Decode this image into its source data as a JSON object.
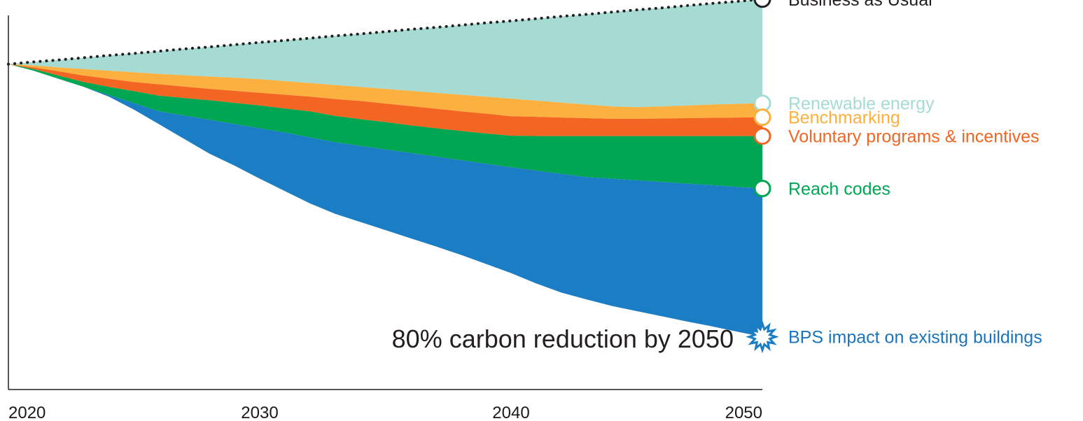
{
  "colors": {
    "axis": "#231f20",
    "bau_line": "#231f20",
    "renewable": "#a5dbd3",
    "benchmarking": "#fbb040",
    "voluntary": "#f26522",
    "reach": "#00a651",
    "bps": "#1b7dc3",
    "bps_label": "#1b75bc"
  },
  "chart_data": {
    "type": "area",
    "title": "",
    "xlabel": "",
    "ylabel": "",
    "x_ticks": [
      "2020",
      "2030",
      "2040",
      "2050"
    ],
    "xlim": [
      2020,
      2050
    ],
    "ylim": [
      0,
      1.15
    ],
    "annotation": "80% carbon reduction by 2050",
    "x": [
      2020,
      2021,
      2022,
      2023,
      2024,
      2025,
      2026,
      2027,
      2028,
      2029,
      2030,
      2031,
      2032,
      2033,
      2034,
      2035,
      2036,
      2037,
      2038,
      2039,
      2040,
      2041,
      2042,
      2043,
      2044,
      2045,
      2046,
      2047,
      2048,
      2049,
      2050
    ],
    "series": [
      {
        "name": "Business as Usual",
        "key": "bau",
        "style": "dotted-line",
        "marker": "ring",
        "values": [
          1.0,
          1.007,
          1.013,
          1.02,
          1.027,
          1.033,
          1.04,
          1.047,
          1.053,
          1.06,
          1.067,
          1.073,
          1.08,
          1.087,
          1.093,
          1.1,
          1.107,
          1.113,
          1.12,
          1.127,
          1.133,
          1.14,
          1.147,
          1.153,
          1.16,
          1.167,
          1.173,
          1.18,
          1.187,
          1.193,
          1.2
        ]
      },
      {
        "name": "Renewable energy",
        "key": "renewable",
        "marker": "ring",
        "values": [
          1.0,
          0.996,
          0.99,
          0.985,
          0.98,
          0.975,
          0.97,
          0.966,
          0.962,
          0.958,
          0.954,
          0.948,
          0.942,
          0.936,
          0.93,
          0.924,
          0.918,
          0.912,
          0.906,
          0.9,
          0.894,
          0.888,
          0.882,
          0.876,
          0.87,
          0.868,
          0.87,
          0.873,
          0.876,
          0.878,
          0.88
        ]
      },
      {
        "name": "Benchmarking",
        "key": "benchmarking",
        "marker": "ring",
        "values": [
          1.0,
          0.99,
          0.978,
          0.965,
          0.955,
          0.945,
          0.938,
          0.931,
          0.924,
          0.918,
          0.912,
          0.906,
          0.9,
          0.893,
          0.887,
          0.879,
          0.871,
          0.863,
          0.855,
          0.848,
          0.84,
          0.838,
          0.836,
          0.834,
          0.832,
          0.832,
          0.833,
          0.834,
          0.835,
          0.836,
          0.837
        ]
      },
      {
        "name": "Voluntary programs & incentives",
        "key": "voluntary",
        "marker": "ring",
        "values": [
          1.0,
          0.985,
          0.965,
          0.945,
          0.93,
          0.917,
          0.903,
          0.896,
          0.889,
          0.881,
          0.873,
          0.864,
          0.855,
          0.841,
          0.831,
          0.822,
          0.812,
          0.803,
          0.795,
          0.787,
          0.78,
          0.779,
          0.779,
          0.779,
          0.779,
          0.779,
          0.779,
          0.779,
          0.779,
          0.779,
          0.779
        ]
      },
      {
        "name": "Reach codes",
        "key": "reach",
        "marker": "ring",
        "values": [
          1.0,
          0.98,
          0.955,
          0.93,
          0.905,
          0.88,
          0.855,
          0.842,
          0.829,
          0.816,
          0.803,
          0.79,
          0.775,
          0.76,
          0.749,
          0.738,
          0.727,
          0.716,
          0.705,
          0.694,
          0.683,
          0.673,
          0.663,
          0.653,
          0.648,
          0.643,
          0.638,
          0.633,
          0.628,
          0.623,
          0.618
        ]
      },
      {
        "name": "BPS impact on existing buildings",
        "key": "bps",
        "marker": "starburst",
        "values": [
          1.0,
          0.98,
          0.955,
          0.93,
          0.9,
          0.86,
          0.815,
          0.77,
          0.725,
          0.688,
          0.648,
          0.61,
          0.572,
          0.54,
          0.515,
          0.49,
          0.465,
          0.44,
          0.414,
          0.386,
          0.358,
          0.326,
          0.298,
          0.277,
          0.257,
          0.241,
          0.225,
          0.209,
          0.194,
          0.178,
          0.162
        ]
      }
    ]
  }
}
